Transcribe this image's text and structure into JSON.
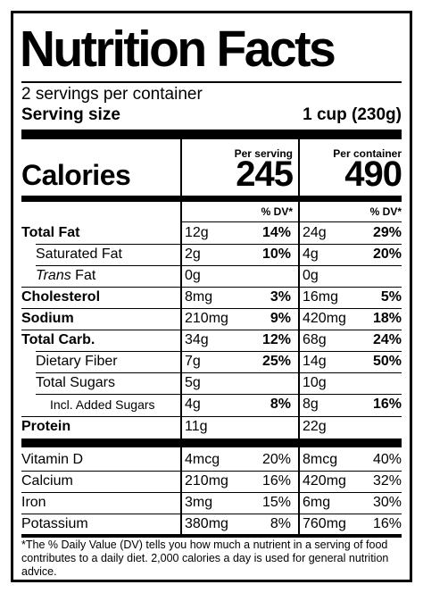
{
  "title": "Nutrition Facts",
  "servings_per_container": "2 servings per container",
  "serving_size_label": "Serving size",
  "serving_size_value": "1 cup (230g)",
  "columns": {
    "per_serving": "Per serving",
    "per_container": "Per container",
    "dv_label": "% DV*"
  },
  "calories": {
    "label": "Calories",
    "per_serving": "245",
    "per_container": "490"
  },
  "nutrients": [
    {
      "name": "Total Fat",
      "serving_amount": "12g",
      "serving_dv": "14%",
      "container_amount": "24g",
      "container_dv": "29%"
    },
    {
      "name": "Saturated Fat",
      "serving_amount": "2g",
      "serving_dv": "10%",
      "container_amount": "4g",
      "container_dv": "20%"
    },
    {
      "name_italic": "Trans",
      "name_rest": " Fat",
      "serving_amount": "0g",
      "serving_dv": "",
      "container_amount": "0g",
      "container_dv": ""
    },
    {
      "name": "Cholesterol",
      "serving_amount": "8mg",
      "serving_dv": "3%",
      "container_amount": "16mg",
      "container_dv": "5%"
    },
    {
      "name": "Sodium",
      "serving_amount": "210mg",
      "serving_dv": "9%",
      "container_amount": "420mg",
      "container_dv": "18%"
    },
    {
      "name": "Total Carb.",
      "serving_amount": "34g",
      "serving_dv": "12%",
      "container_amount": "68g",
      "container_dv": "24%"
    },
    {
      "name": "Dietary Fiber",
      "serving_amount": "7g",
      "serving_dv": "25%",
      "container_amount": "14g",
      "container_dv": "50%"
    },
    {
      "name": "Total Sugars",
      "serving_amount": "5g",
      "serving_dv": "",
      "container_amount": "10g",
      "container_dv": ""
    },
    {
      "name": "Incl. Added Sugars",
      "serving_amount": "4g",
      "serving_dv": "8%",
      "container_amount": "8g",
      "container_dv": "16%"
    },
    {
      "name": "Protein",
      "serving_amount": "11g",
      "serving_dv": "",
      "container_amount": "22g",
      "container_dv": ""
    }
  ],
  "vitamins": [
    {
      "name": "Vitamin D",
      "serving_amount": "4mcg",
      "serving_dv": "20%",
      "container_amount": "8mcg",
      "container_dv": "40%"
    },
    {
      "name": "Calcium",
      "serving_amount": "210mg",
      "serving_dv": "16%",
      "container_amount": "420mg",
      "container_dv": "32%"
    },
    {
      "name": "Iron",
      "serving_amount": "3mg",
      "serving_dv": "15%",
      "container_amount": "6mg",
      "container_dv": "30%"
    },
    {
      "name": "Potassium",
      "serving_amount": "380mg",
      "serving_dv": "8%",
      "container_amount": "760mg",
      "container_dv": "16%"
    }
  ],
  "footnote": "*The % Daily Value (DV) tells you how much a nutrient in a serving of food contributes to a daily diet. 2,000 calories a day is used for general nutrition advice."
}
